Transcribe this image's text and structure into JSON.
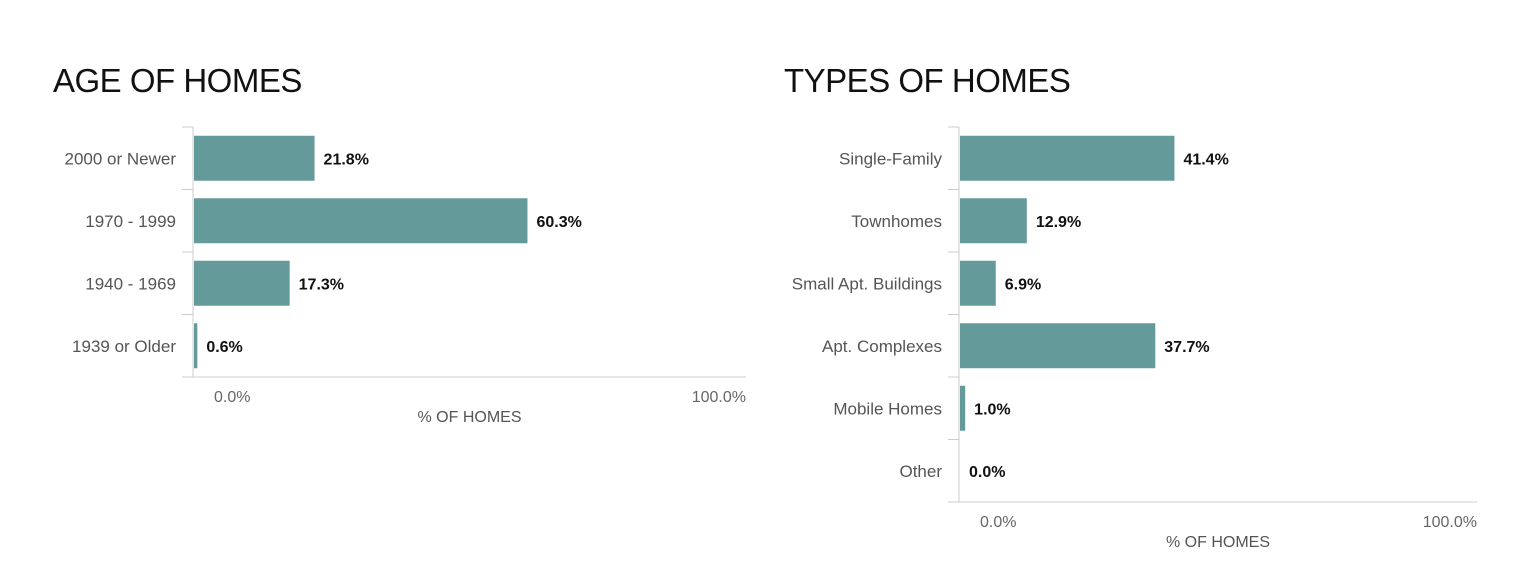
{
  "chart_data": [
    {
      "type": "bar",
      "orientation": "horizontal",
      "title": "AGE OF HOMES",
      "categories": [
        "2000 or Newer",
        "1970 - 1999",
        "1940 - 1969",
        "1939 or Older"
      ],
      "values": [
        21.8,
        60.3,
        17.3,
        0.6
      ],
      "value_labels": [
        "21.8%",
        "60.3%",
        "17.3%",
        "0.6%"
      ],
      "xlabel": "% OF HOMES",
      "ylabel": "",
      "xlim": [
        0,
        100
      ],
      "ticks": [
        "0.0%",
        "100.0%"
      ],
      "grid": false,
      "bar_color": "#659a9b"
    },
    {
      "type": "bar",
      "orientation": "horizontal",
      "title": "TYPES OF HOMES",
      "categories": [
        "Single-Family",
        "Townhomes",
        "Small Apt. Buildings",
        "Apt. Complexes",
        "Mobile Homes",
        "Other"
      ],
      "values": [
        41.4,
        12.9,
        6.9,
        37.7,
        1.0,
        0.0
      ],
      "value_labels": [
        "41.4%",
        "12.9%",
        "6.9%",
        "37.7%",
        "1.0%",
        "0.0%"
      ],
      "xlabel": "% OF HOMES",
      "ylabel": "",
      "xlim": [
        0,
        100
      ],
      "ticks": [
        "0.0%",
        "100.0%"
      ],
      "grid": false,
      "bar_color": "#659a9b"
    }
  ]
}
